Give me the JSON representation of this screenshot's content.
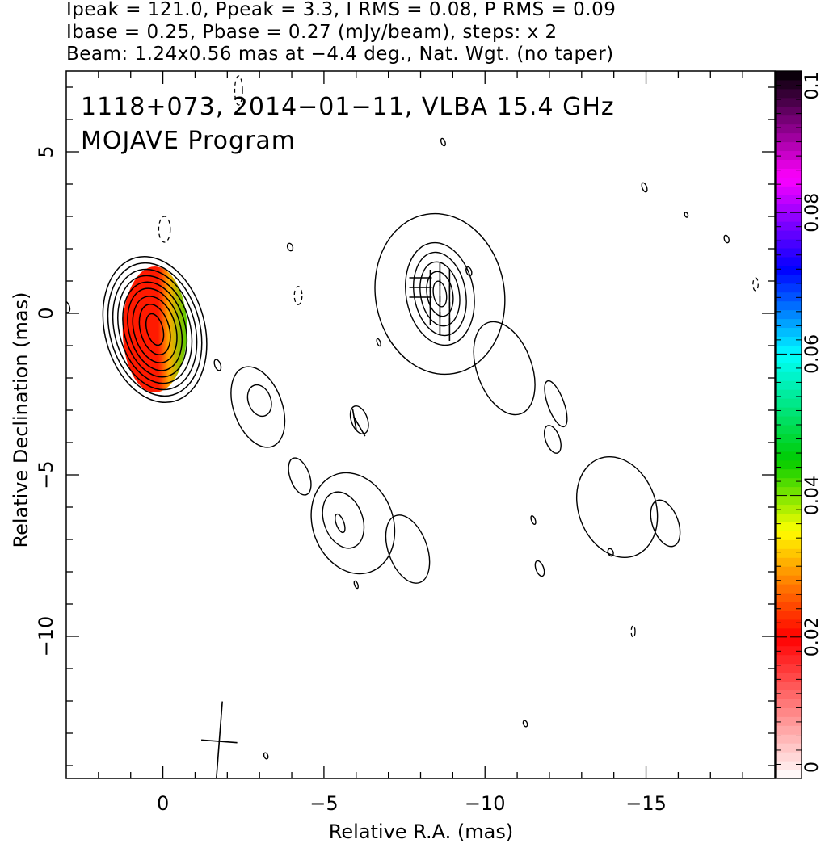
{
  "header": {
    "line1": "Ipeak = 121.0, Ppeak = 3.3, I RMS = 0.08, P RMS = 0.09",
    "line2": "Ibase = 0.25, Pbase = 0.27 (mJy/beam), steps: x 2",
    "line3": "Beam: 1.24x0.56 mas at −4.4 deg., Nat. Wgt. (no taper)"
  },
  "annotations": {
    "source_line": "1118+073, 2014−01−11, VLBA 15.4 GHz",
    "program_line": "MOJAVE Program"
  },
  "chart_data": {
    "type": "heatmap",
    "title": "",
    "xlabel": "Relative R.A. (mas)",
    "ylabel": "Relative Declination (mas)",
    "xlim": [
      3.0,
      -19.0
    ],
    "ylim": [
      -14.4,
      7.5
    ],
    "x_ticks": [
      0,
      -5,
      -10,
      -15
    ],
    "x_tick_labels": [
      "0",
      "−5",
      "−10",
      "−15"
    ],
    "y_ticks": [
      5,
      0,
      -5,
      -10
    ],
    "y_tick_labels": [
      "5",
      "0",
      "−5",
      "−10"
    ],
    "colorbar": {
      "range": [
        0,
        0.1
      ],
      "ticks": [
        0,
        0.02,
        0.04,
        0.06,
        0.08,
        0.1
      ],
      "tick_labels": [
        "0",
        "0.02",
        "0.04",
        "0.06",
        "0.08",
        "0.1"
      ],
      "stops": [
        {
          "v": 0.0,
          "color": "#ffffff"
        },
        {
          "v": 0.02,
          "color": "#ff0000"
        },
        {
          "v": 0.03,
          "color": "#ffa500"
        },
        {
          "v": 0.035,
          "color": "#ffff00"
        },
        {
          "v": 0.045,
          "color": "#00cc00"
        },
        {
          "v": 0.06,
          "color": "#00ffff"
        },
        {
          "v": 0.072,
          "color": "#0000ff"
        },
        {
          "v": 0.085,
          "color": "#ff00ff"
        },
        {
          "v": 0.1,
          "color": "#000000"
        }
      ]
    },
    "polarization_color": {
      "core_left": "#ff1a00",
      "core_mid": "#ffaa00",
      "core_right": "#55cc00"
    },
    "contours": {
      "core": {
        "x": 0.25,
        "y": -0.5,
        "rx": [
          0.25,
          0.45,
          0.65,
          0.8,
          0.95,
          1.1,
          1.25,
          1.4,
          1.55
        ],
        "ry": [
          0.5,
          0.8,
          1.05,
          1.3,
          1.5,
          1.7,
          1.9,
          2.1,
          2.3
        ]
      },
      "knot": {
        "x": -8.6,
        "y": 0.6,
        "rx": [
          0.2,
          0.4,
          0.6,
          0.8,
          1.05,
          2.0
        ],
        "ry": [
          0.4,
          0.7,
          1.0,
          1.3,
          1.6,
          2.5
        ]
      },
      "islands": [
        {
          "x": -2.95,
          "y": -2.9,
          "rx": 0.75,
          "ry": 1.3
        },
        {
          "x": -3.0,
          "y": -2.7,
          "rx": 0.35,
          "ry": 0.5
        },
        {
          "x": -4.25,
          "y": -5.05,
          "rx": 0.3,
          "ry": 0.6
        },
        {
          "x": -5.9,
          "y": -6.5,
          "rx": 1.25,
          "ry": 1.6
        },
        {
          "x": -5.6,
          "y": -6.4,
          "rx": 0.6,
          "ry": 0.9
        },
        {
          "x": -5.5,
          "y": -6.5,
          "rx": 0.12,
          "ry": 0.3
        },
        {
          "x": -7.6,
          "y": -7.3,
          "rx": 0.6,
          "ry": 1.1
        },
        {
          "x": -6.1,
          "y": -3.3,
          "rx": 0.25,
          "ry": 0.45
        },
        {
          "x": -10.6,
          "y": -1.7,
          "rx": 0.85,
          "ry": 1.5
        },
        {
          "x": -12.2,
          "y": -2.8,
          "rx": 0.25,
          "ry": 0.75
        },
        {
          "x": -12.1,
          "y": -3.9,
          "rx": 0.22,
          "ry": 0.45
        },
        {
          "x": -14.1,
          "y": -6.0,
          "rx": 1.2,
          "ry": 1.6
        },
        {
          "x": -15.6,
          "y": -6.5,
          "rx": 0.4,
          "ry": 0.75
        },
        {
          "x": -11.7,
          "y": -7.9,
          "rx": 0.12,
          "ry": 0.25
        },
        {
          "x": -13.9,
          "y": -7.4,
          "rx": 0.08,
          "ry": 0.12
        },
        {
          "x": -11.5,
          "y": -6.4,
          "rx": 0.06,
          "ry": 0.14
        },
        {
          "x": -1.7,
          "y": -1.6,
          "rx": 0.09,
          "ry": 0.18
        },
        {
          "x": -3.95,
          "y": 2.05,
          "rx": 0.08,
          "ry": 0.12
        },
        {
          "x": -8.7,
          "y": 5.3,
          "rx": 0.06,
          "ry": 0.12
        },
        {
          "x": -14.95,
          "y": 3.9,
          "rx": 0.07,
          "ry": 0.15
        },
        {
          "x": -17.5,
          "y": 2.3,
          "rx": 0.07,
          "ry": 0.12
        },
        {
          "x": -9.5,
          "y": 1.3,
          "rx": 0.08,
          "ry": 0.14
        },
        {
          "x": -3.2,
          "y": -13.7,
          "rx": 0.06,
          "ry": 0.1
        },
        {
          "x": -11.25,
          "y": -12.7,
          "rx": 0.06,
          "ry": 0.1
        },
        {
          "x": -6.7,
          "y": -0.9,
          "rx": 0.05,
          "ry": 0.12
        },
        {
          "x": -6.0,
          "y": -8.4,
          "rx": 0.05,
          "ry": 0.12
        },
        {
          "x": -16.25,
          "y": 3.05,
          "rx": 0.04,
          "ry": 0.08
        },
        {
          "x": 3.0,
          "y": 0.2,
          "rx": 0.1,
          "ry": 0.18
        }
      ],
      "negative": [
        {
          "x": -0.05,
          "y": 2.6,
          "rx": 0.18,
          "ry": 0.4
        },
        {
          "x": -2.35,
          "y": 6.9,
          "rx": 0.12,
          "ry": 0.45
        },
        {
          "x": -4.2,
          "y": 0.55,
          "rx": 0.12,
          "ry": 0.28
        },
        {
          "x": -14.6,
          "y": -9.85,
          "rx": 0.06,
          "ry": 0.18
        },
        {
          "x": -18.4,
          "y": 0.9,
          "rx": 0.08,
          "ry": 0.2
        }
      ]
    },
    "evpa_sticks": [
      {
        "x": -8.0,
        "y": 1.1,
        "angle": 0
      },
      {
        "x": -8.0,
        "y": 0.8,
        "angle": 0
      },
      {
        "x": -8.0,
        "y": 0.5,
        "angle": 0
      },
      {
        "x": -8.3,
        "y": 1.0,
        "angle": 90
      },
      {
        "x": -8.3,
        "y": 0.5,
        "angle": 90
      },
      {
        "x": -8.3,
        "y": 0.0,
        "angle": 90
      },
      {
        "x": -8.6,
        "y": 1.2,
        "angle": 90
      },
      {
        "x": -8.6,
        "y": 0.7,
        "angle": 90
      },
      {
        "x": -8.6,
        "y": 0.2,
        "angle": 90
      },
      {
        "x": -8.6,
        "y": -0.3,
        "angle": 90
      },
      {
        "x": -8.9,
        "y": 1.0,
        "angle": 90
      },
      {
        "x": -8.9,
        "y": 0.5,
        "angle": 90
      },
      {
        "x": -8.9,
        "y": 0.0,
        "angle": 90
      },
      {
        "x": -8.9,
        "y": -0.5,
        "angle": 90
      },
      {
        "x": -6.1,
        "y": -3.5,
        "angle": 60
      },
      {
        "x": -5.95,
        "y": -3.3,
        "angle": 80
      }
    ],
    "beam_marker": {
      "x": -1.75,
      "y": -13.25,
      "major": 1.24,
      "minor": 0.56,
      "pa_deg": -4.4
    }
  }
}
